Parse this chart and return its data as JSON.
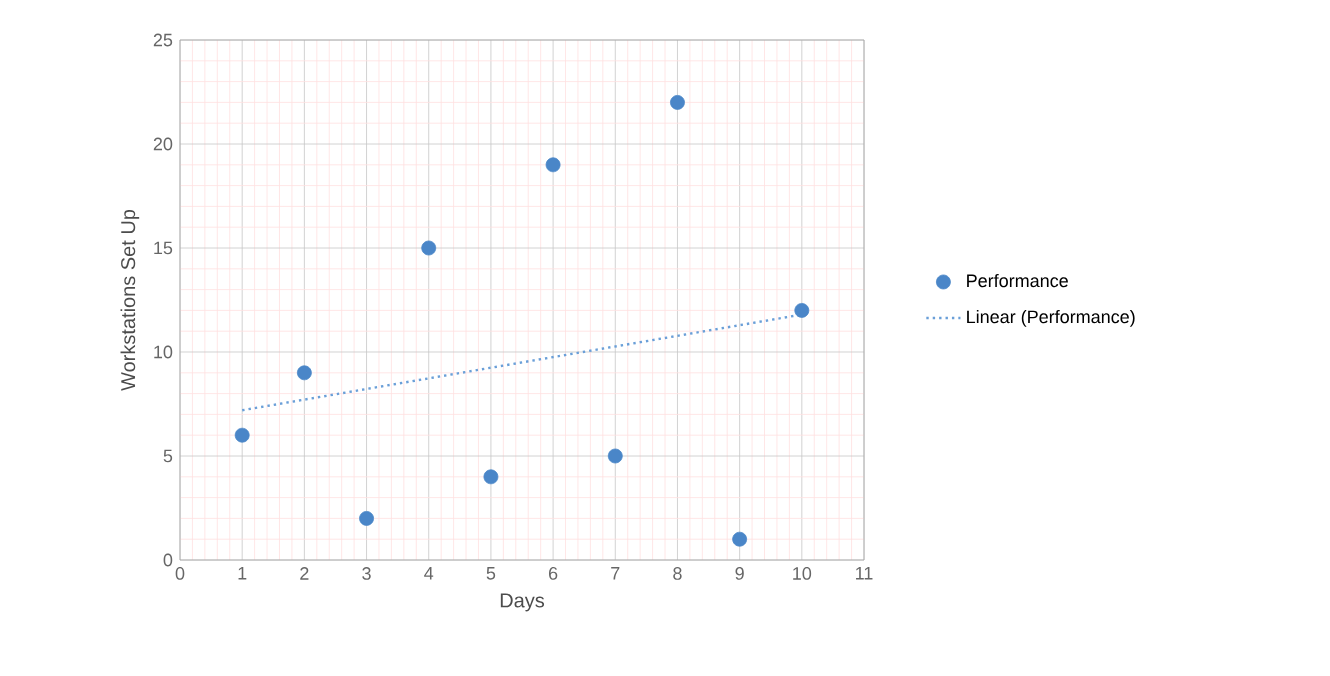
{
  "chart_data": {
    "type": "scatter",
    "xlabel": "Days",
    "ylabel": "Workstations Set Up",
    "xlim": [
      0,
      11
    ],
    "xticks": [
      0,
      1,
      2,
      3,
      4,
      5,
      6,
      7,
      8,
      9,
      10,
      11
    ],
    "ylim": [
      0,
      25
    ],
    "yticks": [
      0,
      5,
      10,
      15,
      20,
      25
    ],
    "grid": true,
    "legend": "right",
    "series": [
      {
        "name": "Performance",
        "marker": "circle",
        "color": "#4a86c8",
        "x": [
          1,
          2,
          3,
          4,
          5,
          6,
          7,
          8,
          9,
          10
        ],
        "values": [
          6,
          9,
          2,
          15,
          4,
          19,
          5,
          22,
          1,
          12
        ]
      },
      {
        "name": "Linear (Performance)",
        "type": "line",
        "color": "#6a9fd8",
        "line_style": "dotted",
        "x": [
          1,
          10
        ],
        "values": [
          7.2,
          11.8
        ]
      }
    ]
  }
}
